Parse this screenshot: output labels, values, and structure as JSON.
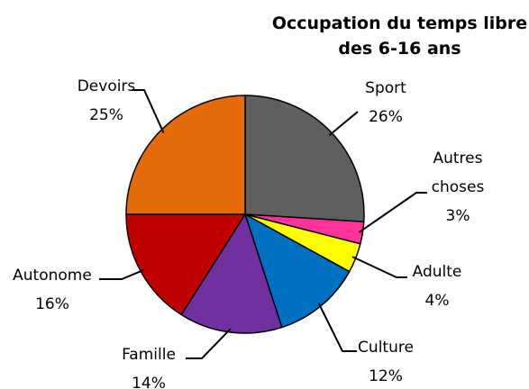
{
  "chart_data": {
    "type": "pie",
    "title": "Occupation du temps libre des 6-16 ans",
    "categories": [
      "Sport",
      "Autres choses",
      "Adulte",
      "Culture",
      "Famille",
      "Autonome",
      "Devoirs"
    ],
    "values": [
      26,
      3,
      4,
      12,
      14,
      16,
      25
    ],
    "value_labels": [
      "26%",
      "3%",
      "4%",
      "12%",
      "14%",
      "16%",
      "25%"
    ],
    "colors": [
      "#5f5f5f",
      "#ff3399",
      "#ffff00",
      "#0070c0",
      "#7030a0",
      "#c00000",
      "#e36c09"
    ]
  }
}
